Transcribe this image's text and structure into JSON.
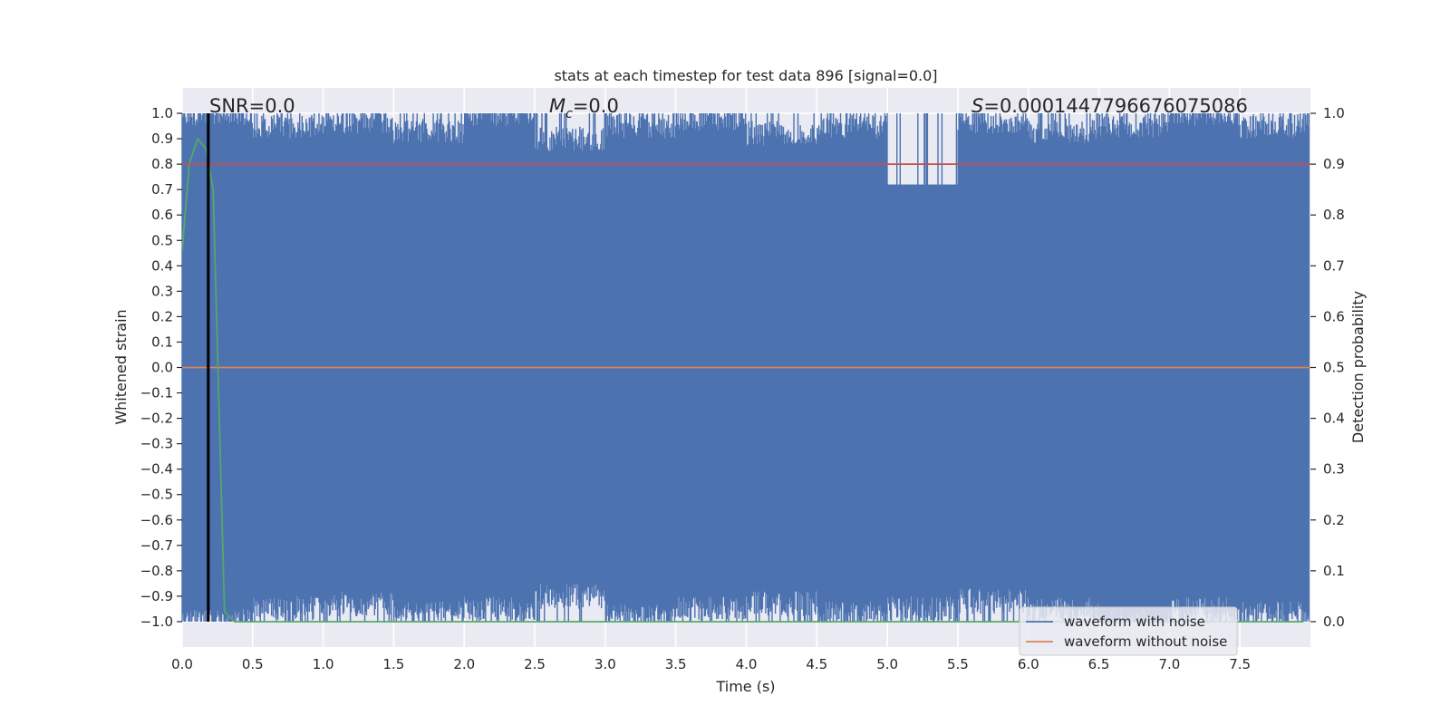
{
  "chart_data": {
    "type": "line",
    "title": "stats at each timestep for test data 896 [signal=0.0]",
    "xlabel": "Time (s)",
    "ylabel": "Whitened strain",
    "y2label": "Detection probability",
    "xlim": [
      0.0,
      8.0
    ],
    "ylim": [
      -1.1,
      1.1
    ],
    "y2lim": [
      -0.05,
      1.05
    ],
    "xticks": [
      "0.0",
      "0.5",
      "1.0",
      "1.5",
      "2.0",
      "2.5",
      "3.0",
      "3.5",
      "4.0",
      "4.5",
      "5.0",
      "5.5",
      "6.0",
      "6.5",
      "7.0",
      "7.5"
    ],
    "yticks": [
      "1.0",
      "0.9",
      "0.8",
      "0.7",
      "0.6",
      "0.5",
      "0.4",
      "0.3",
      "0.2",
      "0.1",
      "0.0",
      "−0.1",
      "−0.2",
      "−0.3",
      "−0.4",
      "−0.5",
      "−0.6",
      "−0.7",
      "−0.8",
      "−0.9",
      "−1.0"
    ],
    "y2ticks": [
      "1.0",
      "0.9",
      "0.8",
      "0.7",
      "0.6",
      "0.5",
      "0.4",
      "0.3",
      "0.2",
      "0.1",
      "0.0"
    ],
    "grid": true,
    "legend_position": "lower-right",
    "annotations": {
      "snr": "SNR=0.0",
      "mc_symbol": "M",
      "mc_subscript": "c",
      "mc_value": "=0.0",
      "s_symbol": "S",
      "s_value": "=0.0001447796676075086"
    },
    "series": [
      {
        "name": "waveform with noise",
        "axis": "left",
        "color": "#4c72b0",
        "description_of_shape": "dense clipped noise spanning -1.0 to 1.0 across the full time range",
        "envelope_upper": [
          0.95,
          0.9,
          0.92,
          0.88,
          0.95,
          0.85,
          0.9,
          0.93,
          0.87,
          0.9,
          0.6,
          0.92,
          0.88,
          0.9,
          0.95,
          0.9
        ],
        "envelope_lower": [
          -0.95,
          -0.9,
          -0.88,
          -0.92,
          -0.9,
          -0.85,
          -0.93,
          -0.9,
          -0.88,
          -0.92,
          -0.9,
          -0.87,
          -0.9,
          -0.95,
          -0.9,
          -0.92
        ]
      },
      {
        "name": "waveform without noise",
        "axis": "left",
        "color": "#dd8452",
        "x": [
          0.0,
          8.0
        ],
        "y": [
          0.0,
          0.0
        ]
      },
      {
        "name": "",
        "axis": "right",
        "color": "#55a868",
        "x": [
          0.0,
          0.05,
          0.11,
          0.17,
          0.22,
          0.3,
          0.37,
          7.95
        ],
        "y": [
          0.73,
          0.9,
          0.95,
          0.93,
          0.85,
          0.02,
          0.0,
          0.0
        ]
      },
      {
        "name": "",
        "axis": "right",
        "color": "#c44e52",
        "x": [
          0.0,
          8.0
        ],
        "y": [
          0.9,
          0.9
        ]
      }
    ],
    "vlines": [
      {
        "x": 0.18,
        "color": "#000000"
      },
      {
        "x": 0.19,
        "color": "#000000"
      }
    ]
  }
}
